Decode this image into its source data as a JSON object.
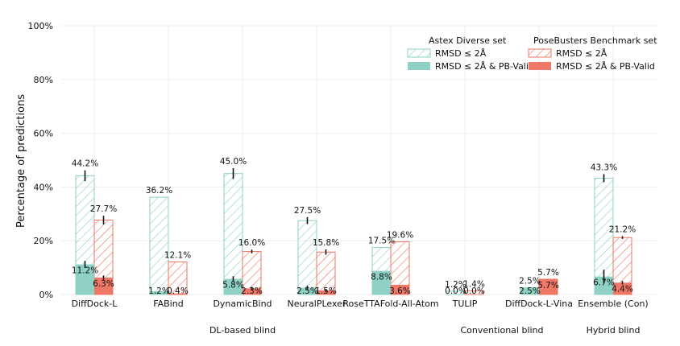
{
  "chart_data": {
    "type": "bar",
    "ylabel": "Percentage of predictions",
    "ylim": [
      0,
      100
    ],
    "yticks": [
      "0%",
      "20%",
      "40%",
      "60%",
      "80%",
      "100%"
    ],
    "categories": [
      "DiffDock-L",
      "FABind",
      "DynamicBind",
      "NeuralPLexer",
      "RoseTTAFold-All-Atom",
      "TULIP",
      "DiffDock-L-Vina",
      "Ensemble (Con)"
    ],
    "groups": [
      {
        "label": "DL-based blind",
        "start": 0,
        "end": 4
      },
      {
        "label": "Conventional blind",
        "start": 5,
        "end": 6
      },
      {
        "label": "Hybrid blind",
        "start": 7,
        "end": 7
      }
    ],
    "legend": {
      "headers": [
        "Astex Diverse set",
        "PoseBusters Benchmark set"
      ],
      "astex_items": [
        "RMSD ≤ 2Å",
        "RMSD ≤ 2Å & PB-Valid"
      ],
      "pb_items": [
        "RMSD ≤ 2Å",
        "RMSD ≤ 2Å & PB-Valid"
      ]
    },
    "series": [
      {
        "name": "Astex Diverse set RMSD ≤ 2Å",
        "dataset": "astex",
        "style": "hatched",
        "values": [
          44.2,
          36.2,
          45.0,
          27.5,
          17.5,
          1.2,
          2.5,
          43.3
        ],
        "errors": [
          2.0,
          0,
          2.0,
          1.3,
          0,
          0,
          0,
          1.5
        ],
        "labels": [
          "44.2%",
          "36.2%",
          "45.0%",
          "27.5%",
          "17.5%",
          "1.2%",
          "2.5%",
          "43.3%"
        ]
      },
      {
        "name": "Astex Diverse set RMSD ≤ 2Å & PB-Valid",
        "dataset": "astex",
        "style": "solid",
        "values": [
          11.2,
          1.2,
          5.8,
          2.5,
          8.8,
          0.0,
          2.5,
          6.7
        ],
        "errors": [
          1.3,
          0,
          1.0,
          0.8,
          0,
          0,
          0,
          2.5
        ],
        "labels": [
          "11.2%",
          "1.2%",
          "5.8%",
          "2.5%",
          "8.8%",
          "0.0%",
          "2.5%",
          "6.7%"
        ]
      },
      {
        "name": "PoseBusters Benchmark set RMSD ≤ 2Å",
        "dataset": "pb",
        "style": "hatched",
        "values": [
          27.7,
          12.1,
          16.0,
          15.8,
          19.6,
          1.4,
          5.7,
          21.2
        ],
        "errors": [
          1.6,
          0,
          0.7,
          1.0,
          0,
          0,
          0,
          0.5
        ],
        "labels": [
          "27.7%",
          "12.1%",
          "16.0%",
          "15.8%",
          "19.6%",
          "1.4%",
          "5.7%",
          "21.2%"
        ]
      },
      {
        "name": "PoseBusters Benchmark set RMSD ≤ 2Å & PB-Valid",
        "dataset": "pb",
        "style": "solid",
        "values": [
          6.3,
          0.4,
          2.3,
          1.5,
          3.6,
          0.0,
          5.7,
          4.4
        ],
        "errors": [
          0.8,
          0,
          0.5,
          0.6,
          0,
          0,
          0,
          0.6
        ],
        "labels": [
          "6.3%",
          "0.4%",
          "2.3%",
          "1.5%",
          "3.6%",
          "0.0%",
          "5.7%",
          "4.4%"
        ]
      }
    ],
    "colors": {
      "astex": "#8fd1c4",
      "pb": "#ef7766",
      "grid": "#eeeeee",
      "text": "#111111"
    }
  }
}
